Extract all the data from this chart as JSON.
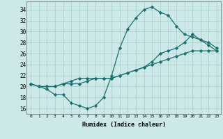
{
  "xlabel": "Humidex (Indice chaleur)",
  "background_color": "#cce8e8",
  "grid_color": "#aacccc",
  "line_color": "#1a7070",
  "marker": "D",
  "markersize": 2.2,
  "linewidth": 0.9,
  "xlim": [
    -0.5,
    23.5
  ],
  "ylim": [
    15.0,
    35.5
  ],
  "yticks": [
    16,
    18,
    20,
    22,
    24,
    26,
    28,
    30,
    32,
    34
  ],
  "xticks": [
    0,
    1,
    2,
    3,
    4,
    5,
    6,
    7,
    8,
    9,
    10,
    11,
    12,
    13,
    14,
    15,
    16,
    17,
    18,
    19,
    20,
    21,
    22,
    23
  ],
  "series": [
    [
      20.5,
      20.0,
      19.5,
      18.5,
      18.5,
      17.0,
      16.5,
      16.0,
      16.5,
      18.0,
      22.0,
      27.0,
      30.5,
      32.5,
      34.0,
      34.5,
      33.5,
      33.0,
      31.0,
      29.5,
      29.0,
      28.5,
      27.5,
      26.5
    ],
    [
      20.5,
      20.0,
      20.0,
      20.0,
      20.5,
      20.5,
      20.5,
      21.0,
      21.5,
      21.5,
      21.5,
      22.0,
      22.5,
      23.0,
      23.5,
      24.0,
      24.5,
      25.0,
      25.5,
      26.0,
      26.5,
      26.5,
      26.5,
      26.5
    ],
    [
      20.5,
      20.0,
      20.0,
      20.0,
      20.5,
      21.0,
      21.5,
      21.5,
      21.5,
      21.5,
      21.5,
      22.0,
      22.5,
      23.0,
      23.5,
      24.5,
      26.0,
      26.5,
      27.0,
      28.0,
      29.5,
      28.5,
      28.0,
      27.0
    ]
  ]
}
